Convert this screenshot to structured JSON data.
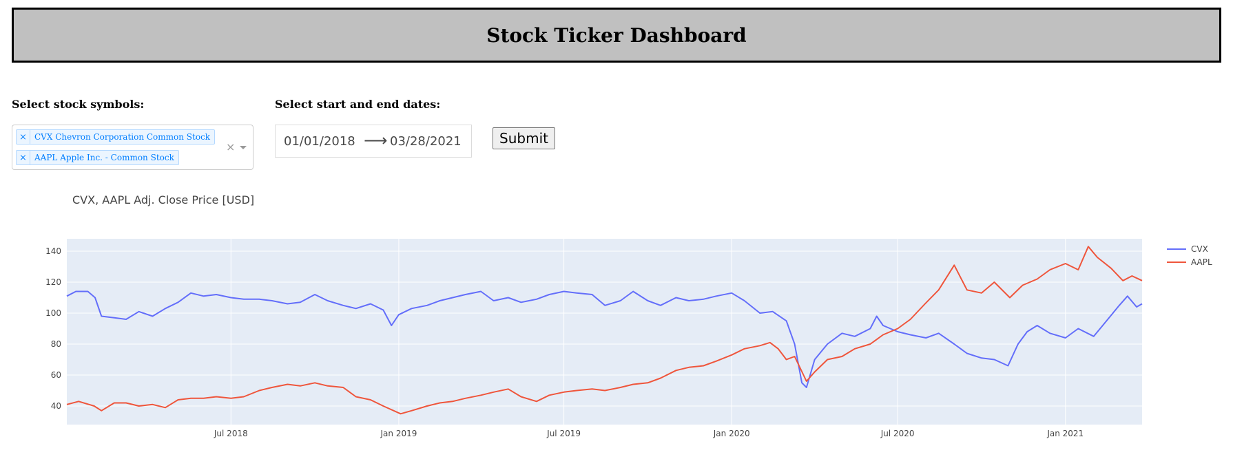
{
  "header": {
    "title": "Stock Ticker Dashboard"
  },
  "symbols": {
    "label": "Select stock symbols:",
    "selected": [
      {
        "remove": "×",
        "text": "CVX Chevron Corporation Common Stock"
      },
      {
        "remove": "×",
        "text": "AAPL Apple Inc. - Common Stock"
      }
    ],
    "clear": "×"
  },
  "dates": {
    "label": "Select start and end dates:",
    "start": "01/01/2018",
    "arrow": "⟶",
    "end": "03/28/2021"
  },
  "submit": {
    "label": "Submit"
  },
  "chart_data": {
    "type": "line",
    "title": "CVX, AAPL Adj. Close Price [USD]",
    "xlabel": "",
    "ylabel": "",
    "xlim": [
      "2018-01-02",
      "2021-03-26"
    ],
    "ylim": [
      28,
      148
    ],
    "yticks": [
      40,
      60,
      80,
      100,
      120,
      140
    ],
    "xticks": [
      {
        "date": "2018-07-01",
        "label": "Jul 2018"
      },
      {
        "date": "2019-01-01",
        "label": "Jan 2019"
      },
      {
        "date": "2019-07-01",
        "label": "Jul 2019"
      },
      {
        "date": "2020-01-01",
        "label": "Jan 2020"
      },
      {
        "date": "2020-07-01",
        "label": "Jul 2020"
      },
      {
        "date": "2021-01-01",
        "label": "Jan 2021"
      }
    ],
    "grid": true,
    "legend_position": "top-right",
    "background": "#e5ecf6",
    "series": [
      {
        "name": "CVX",
        "color": "#636efa",
        "points": [
          [
            "2018-01-02",
            111
          ],
          [
            "2018-01-12",
            114
          ],
          [
            "2018-01-25",
            114
          ],
          [
            "2018-02-02",
            110
          ],
          [
            "2018-02-09",
            98
          ],
          [
            "2018-02-23",
            97
          ],
          [
            "2018-03-08",
            96
          ],
          [
            "2018-03-22",
            101
          ],
          [
            "2018-04-06",
            98
          ],
          [
            "2018-04-20",
            103
          ],
          [
            "2018-05-04",
            107
          ],
          [
            "2018-05-18",
            113
          ],
          [
            "2018-06-01",
            111
          ],
          [
            "2018-06-15",
            112
          ],
          [
            "2018-07-01",
            110
          ],
          [
            "2018-07-15",
            109
          ],
          [
            "2018-08-01",
            109
          ],
          [
            "2018-08-15",
            108
          ],
          [
            "2018-09-01",
            106
          ],
          [
            "2018-09-15",
            107
          ],
          [
            "2018-10-01",
            112
          ],
          [
            "2018-10-15",
            108
          ],
          [
            "2018-11-01",
            105
          ],
          [
            "2018-11-15",
            103
          ],
          [
            "2018-12-01",
            106
          ],
          [
            "2018-12-15",
            102
          ],
          [
            "2018-12-24",
            92
          ],
          [
            "2019-01-01",
            99
          ],
          [
            "2019-01-15",
            103
          ],
          [
            "2019-02-01",
            105
          ],
          [
            "2019-02-15",
            108
          ],
          [
            "2019-03-01",
            110
          ],
          [
            "2019-03-15",
            112
          ],
          [
            "2019-04-01",
            114
          ],
          [
            "2019-04-15",
            108
          ],
          [
            "2019-05-01",
            110
          ],
          [
            "2019-05-15",
            107
          ],
          [
            "2019-06-01",
            109
          ],
          [
            "2019-06-15",
            112
          ],
          [
            "2019-07-01",
            114
          ],
          [
            "2019-07-15",
            113
          ],
          [
            "2019-08-01",
            112
          ],
          [
            "2019-08-15",
            105
          ],
          [
            "2019-09-01",
            108
          ],
          [
            "2019-09-15",
            114
          ],
          [
            "2019-10-01",
            108
          ],
          [
            "2019-10-15",
            105
          ],
          [
            "2019-11-01",
            110
          ],
          [
            "2019-11-15",
            108
          ],
          [
            "2019-12-01",
            109
          ],
          [
            "2019-12-15",
            111
          ],
          [
            "2020-01-01",
            113
          ],
          [
            "2020-01-15",
            108
          ],
          [
            "2020-02-01",
            100
          ],
          [
            "2020-02-15",
            101
          ],
          [
            "2020-03-01",
            95
          ],
          [
            "2020-03-10",
            80
          ],
          [
            "2020-03-18",
            55
          ],
          [
            "2020-03-23",
            52
          ],
          [
            "2020-04-01",
            70
          ],
          [
            "2020-04-15",
            80
          ],
          [
            "2020-05-01",
            87
          ],
          [
            "2020-05-15",
            85
          ],
          [
            "2020-06-01",
            90
          ],
          [
            "2020-06-08",
            98
          ],
          [
            "2020-06-15",
            92
          ],
          [
            "2020-07-01",
            88
          ],
          [
            "2020-07-15",
            86
          ],
          [
            "2020-08-01",
            84
          ],
          [
            "2020-08-15",
            87
          ],
          [
            "2020-09-01",
            80
          ],
          [
            "2020-09-15",
            74
          ],
          [
            "2020-10-01",
            71
          ],
          [
            "2020-10-15",
            70
          ],
          [
            "2020-10-30",
            66
          ],
          [
            "2020-11-10",
            80
          ],
          [
            "2020-11-20",
            88
          ],
          [
            "2020-12-01",
            92
          ],
          [
            "2020-12-15",
            87
          ],
          [
            "2021-01-01",
            84
          ],
          [
            "2021-01-15",
            90
          ],
          [
            "2021-02-01",
            85
          ],
          [
            "2021-02-15",
            95
          ],
          [
            "2021-03-01",
            105
          ],
          [
            "2021-03-10",
            111
          ],
          [
            "2021-03-20",
            104
          ],
          [
            "2021-03-26",
            106
          ]
        ]
      },
      {
        "name": "AAPL",
        "color": "#ef553b",
        "points": [
          [
            "2018-01-02",
            41
          ],
          [
            "2018-01-15",
            43
          ],
          [
            "2018-02-01",
            40
          ],
          [
            "2018-02-09",
            37
          ],
          [
            "2018-02-23",
            42
          ],
          [
            "2018-03-08",
            42
          ],
          [
            "2018-03-22",
            40
          ],
          [
            "2018-04-06",
            41
          ],
          [
            "2018-04-20",
            39
          ],
          [
            "2018-05-04",
            44
          ],
          [
            "2018-05-18",
            45
          ],
          [
            "2018-06-01",
            45
          ],
          [
            "2018-06-15",
            46
          ],
          [
            "2018-07-01",
            45
          ],
          [
            "2018-07-15",
            46
          ],
          [
            "2018-08-01",
            50
          ],
          [
            "2018-08-15",
            52
          ],
          [
            "2018-09-01",
            54
          ],
          [
            "2018-09-15",
            53
          ],
          [
            "2018-10-01",
            55
          ],
          [
            "2018-10-15",
            53
          ],
          [
            "2018-11-01",
            52
          ],
          [
            "2018-11-15",
            46
          ],
          [
            "2018-12-01",
            44
          ],
          [
            "2018-12-15",
            40
          ],
          [
            "2019-01-03",
            35
          ],
          [
            "2019-01-15",
            37
          ],
          [
            "2019-02-01",
            40
          ],
          [
            "2019-02-15",
            42
          ],
          [
            "2019-03-01",
            43
          ],
          [
            "2019-03-15",
            45
          ],
          [
            "2019-04-01",
            47
          ],
          [
            "2019-04-15",
            49
          ],
          [
            "2019-05-01",
            51
          ],
          [
            "2019-05-15",
            46
          ],
          [
            "2019-06-01",
            43
          ],
          [
            "2019-06-15",
            47
          ],
          [
            "2019-07-01",
            49
          ],
          [
            "2019-07-15",
            50
          ],
          [
            "2019-08-01",
            51
          ],
          [
            "2019-08-15",
            50
          ],
          [
            "2019-09-01",
            52
          ],
          [
            "2019-09-15",
            54
          ],
          [
            "2019-10-01",
            55
          ],
          [
            "2019-10-15",
            58
          ],
          [
            "2019-11-01",
            63
          ],
          [
            "2019-11-15",
            65
          ],
          [
            "2019-12-01",
            66
          ],
          [
            "2019-12-15",
            69
          ],
          [
            "2020-01-01",
            73
          ],
          [
            "2020-01-15",
            77
          ],
          [
            "2020-02-01",
            79
          ],
          [
            "2020-02-12",
            81
          ],
          [
            "2020-02-21",
            77
          ],
          [
            "2020-03-01",
            70
          ],
          [
            "2020-03-10",
            72
          ],
          [
            "2020-03-23",
            56
          ],
          [
            "2020-04-01",
            62
          ],
          [
            "2020-04-15",
            70
          ],
          [
            "2020-05-01",
            72
          ],
          [
            "2020-05-15",
            77
          ],
          [
            "2020-06-01",
            80
          ],
          [
            "2020-06-15",
            86
          ],
          [
            "2020-07-01",
            90
          ],
          [
            "2020-07-15",
            96
          ],
          [
            "2020-07-31",
            106
          ],
          [
            "2020-08-15",
            115
          ],
          [
            "2020-09-01",
            131
          ],
          [
            "2020-09-15",
            115
          ],
          [
            "2020-10-01",
            113
          ],
          [
            "2020-10-15",
            120
          ],
          [
            "2020-11-01",
            110
          ],
          [
            "2020-11-15",
            118
          ],
          [
            "2020-12-01",
            122
          ],
          [
            "2020-12-15",
            128
          ],
          [
            "2021-01-01",
            132
          ],
          [
            "2021-01-15",
            128
          ],
          [
            "2021-01-26",
            143
          ],
          [
            "2021-02-05",
            136
          ],
          [
            "2021-02-20",
            129
          ],
          [
            "2021-03-05",
            121
          ],
          [
            "2021-03-15",
            124
          ],
          [
            "2021-03-26",
            121
          ]
        ]
      }
    ]
  }
}
